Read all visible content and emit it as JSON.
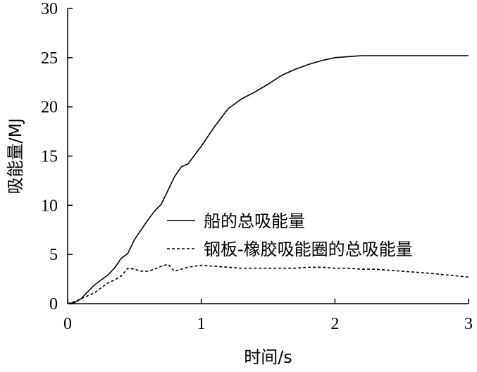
{
  "chart_data": {
    "type": "line",
    "title": "",
    "xlabel": "时间/s",
    "ylabel": "吸能量/MJ",
    "xlim": [
      0,
      3
    ],
    "ylim": [
      0,
      30
    ],
    "xticks": [
      0,
      1,
      2,
      3
    ],
    "yticks": [
      0,
      5,
      10,
      15,
      20,
      25,
      30
    ],
    "xtick_labels": [
      "0",
      "1",
      "2",
      "3"
    ],
    "ytick_labels": [
      "0",
      "5",
      "10",
      "15",
      "20",
      "25",
      "30"
    ],
    "grid": false,
    "legend_position": "center-right",
    "series": [
      {
        "name": "船的总吸能量",
        "style": "solid",
        "color": "#000000",
        "x": [
          0,
          0.05,
          0.1,
          0.15,
          0.2,
          0.25,
          0.3,
          0.35,
          0.4,
          0.45,
          0.5,
          0.55,
          0.6,
          0.65,
          0.7,
          0.75,
          0.8,
          0.85,
          0.9,
          1.0,
          1.1,
          1.2,
          1.3,
          1.4,
          1.5,
          1.6,
          1.7,
          1.8,
          1.9,
          2.0,
          2.1,
          2.2,
          2.3,
          2.5,
          2.7,
          3.0
        ],
        "y": [
          0,
          0.1,
          0.5,
          1.2,
          1.9,
          2.4,
          2.9,
          3.6,
          4.6,
          5.1,
          6.5,
          7.5,
          8.5,
          9.4,
          10.1,
          11.5,
          12.9,
          13.9,
          14.2,
          16.0,
          18.0,
          19.8,
          20.8,
          21.5,
          22.3,
          23.2,
          23.8,
          24.3,
          24.7,
          25.0,
          25.1,
          25.2,
          25.2,
          25.2,
          25.2,
          25.2
        ]
      },
      {
        "name": "钢板-橡胶吸能圈的总吸能量",
        "style": "dashed",
        "color": "#000000",
        "x": [
          0,
          0.05,
          0.1,
          0.15,
          0.2,
          0.25,
          0.3,
          0.35,
          0.4,
          0.45,
          0.5,
          0.55,
          0.6,
          0.65,
          0.7,
          0.75,
          0.8,
          0.85,
          0.9,
          1.0,
          1.1,
          1.2,
          1.3,
          1.4,
          1.5,
          1.6,
          1.7,
          1.8,
          1.9,
          2.0,
          2.1,
          2.2,
          2.3,
          2.5,
          2.7,
          3.0
        ],
        "y": [
          0,
          0.2,
          0.5,
          0.8,
          1.1,
          1.6,
          2.1,
          2.4,
          2.8,
          3.6,
          3.5,
          3.3,
          3.3,
          3.5,
          3.8,
          4.0,
          3.3,
          3.5,
          3.7,
          3.9,
          3.8,
          3.7,
          3.6,
          3.6,
          3.6,
          3.6,
          3.6,
          3.7,
          3.7,
          3.6,
          3.6,
          3.5,
          3.5,
          3.3,
          3.1,
          2.7
        ]
      }
    ]
  }
}
